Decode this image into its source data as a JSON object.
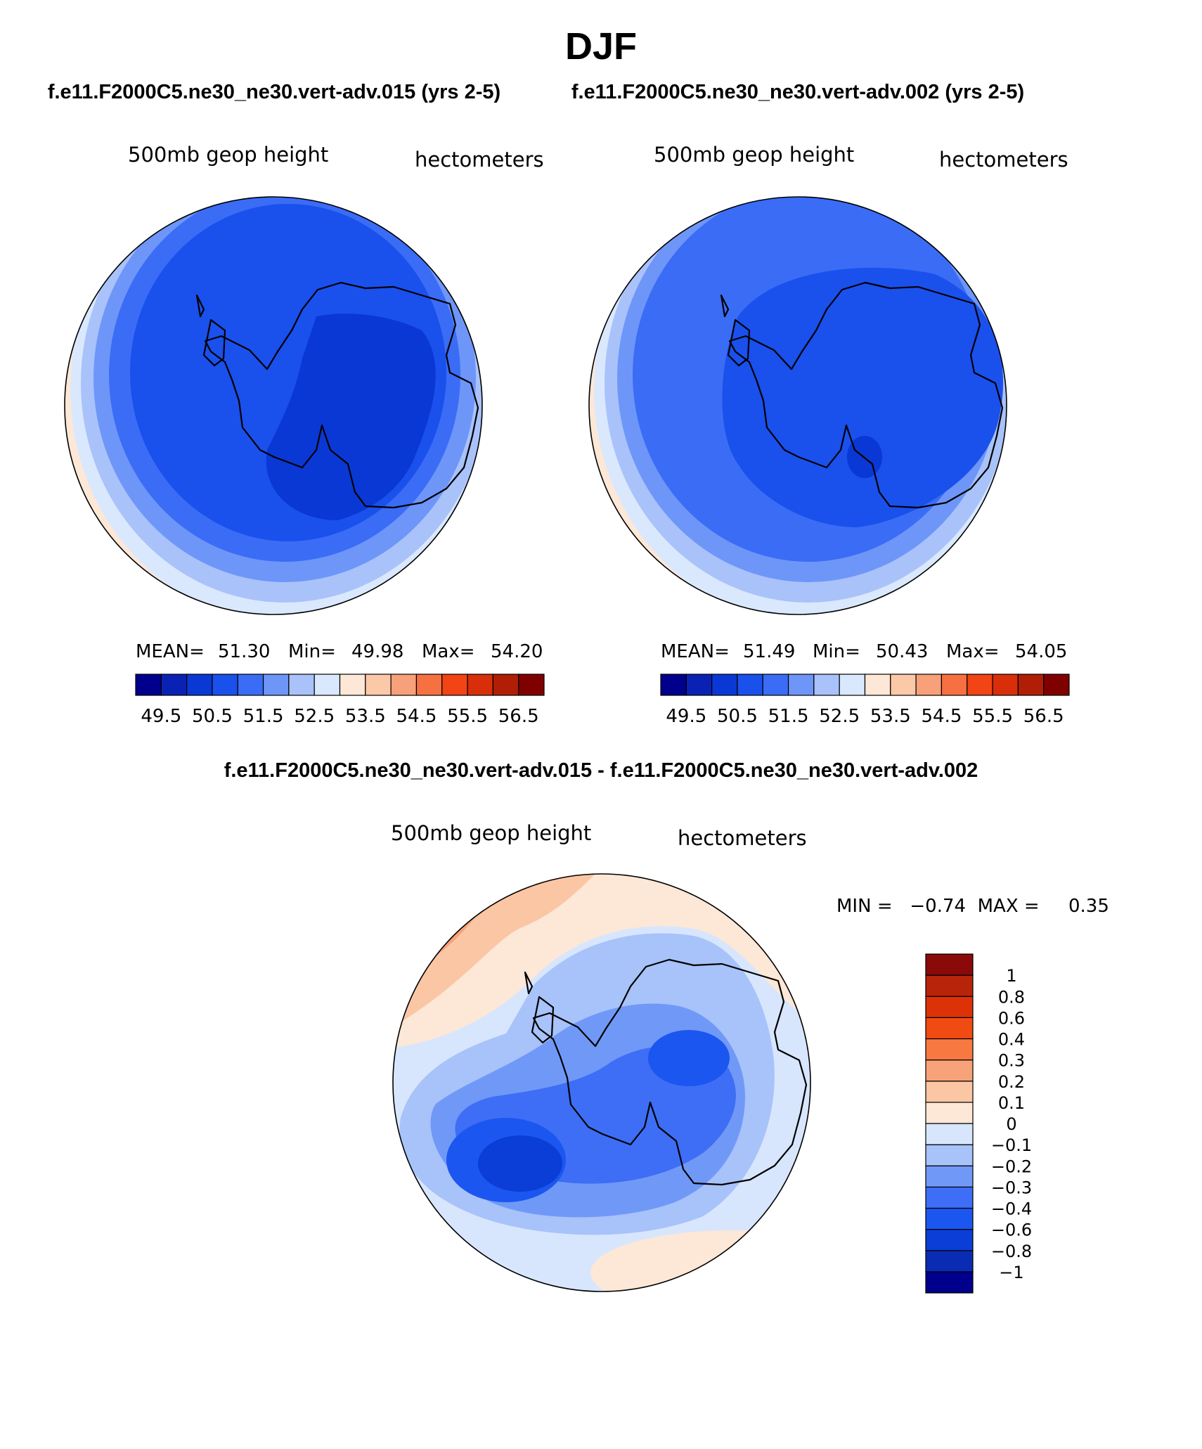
{
  "title": "DJF",
  "panels": [
    {
      "id": "left",
      "subtitle": "f.e11.F2000C5.ne30_ne30.vert-adv.015 (yrs 2-5)",
      "left_label": "500mb  geop  height",
      "right_label": "hectometers",
      "stats": {
        "mean_label": "MEAN=",
        "mean": "51.30",
        "min_label": "Min=",
        "min": "49.98",
        "max_label": "Max=",
        "max": "54.20"
      }
    },
    {
      "id": "right",
      "subtitle": "f.e11.F2000C5.ne30_ne30.vert-adv.002 (yrs 2-5)",
      "left_label": "500mb  geop  height",
      "right_label": "hectometers",
      "stats": {
        "mean_label": "MEAN=",
        "mean": "51.49",
        "min_label": "Min=",
        "min": "50.43",
        "max_label": "Max=",
        "max": "54.05"
      }
    },
    {
      "id": "diff",
      "subtitle": "f.e11.F2000C5.ne30_ne30.vert-adv.015 - f.e11.F2000C5.ne30_ne30.vert-adv.002",
      "left_label": "500mb  geop  height",
      "right_label": "hectometers",
      "minmax": "MIN =   −0.74  MAX =     0.35"
    }
  ],
  "colorbar_abs": {
    "colors": [
      "#00008c",
      "#0a22b4",
      "#0a38d4",
      "#1a50ec",
      "#3a6cf6",
      "#6e96f8",
      "#a9c2fa",
      "#d9e8fd",
      "#fde7d6",
      "#fbc8a8",
      "#f8a079",
      "#f77041",
      "#f24414",
      "#d82f0a",
      "#b01e05",
      "#800000"
    ],
    "labels": [
      "49.5",
      "50.5",
      "51.5",
      "52.5",
      "53.5",
      "54.5",
      "55.5",
      "56.5"
    ]
  },
  "colorbar_diff": {
    "colors": [
      "#00008c",
      "#0a2cb4",
      "#0a3ed6",
      "#1c56f0",
      "#3d6ef5",
      "#7099f7",
      "#a8c2fa",
      "#d7e6fd",
      "#fde7d6",
      "#fbc6a4",
      "#f8a27a",
      "#f77941",
      "#f04b12",
      "#dd3208",
      "#b8240a",
      "#8a0a0a"
    ],
    "labels": [
      "1",
      "0.8",
      "0.6",
      "0.4",
      "0.3",
      "0.2",
      "0.1",
      "0",
      "−0.1",
      "−0.2",
      "−0.3",
      "−0.4",
      "−0.6",
      "−0.8",
      "−1"
    ]
  },
  "map_colors": {
    "polar_vortex_deep": "#0a38d4",
    "ring_blue": "#1a50ec",
    "outline": "#000000"
  }
}
